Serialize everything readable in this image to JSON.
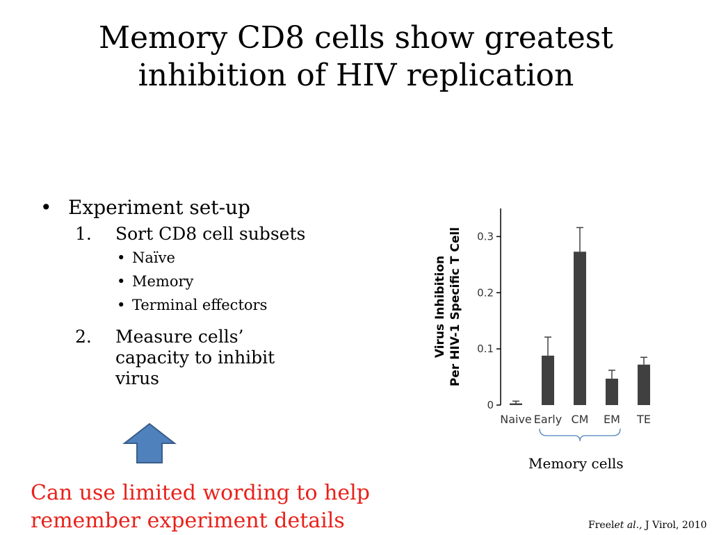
{
  "slide": {
    "title_lines": [
      "Memory CD8 cells show greatest",
      "inhibition of HIV replication"
    ],
    "bullet_main": "Experiment set-up",
    "bullet_main_marker": "•",
    "step1": {
      "number": "1.",
      "text": "Sort CD8 cell subsets"
    },
    "subsets": [
      {
        "marker": "•",
        "text": "Naïve"
      },
      {
        "marker": "•",
        "text": "Memory"
      },
      {
        "marker": "•",
        "text": "Terminal effectors"
      }
    ],
    "step2": {
      "number": "2.",
      "lines": [
        "Measure cells’",
        "capacity to inhibit",
        "virus"
      ]
    },
    "note_lines": [
      "Can use limited wording to help",
      "remember experiment details"
    ],
    "brace_label": "Memory cells",
    "citation": {
      "prefix": "Freel",
      "italic": "et al.,",
      "suffix": " J Virol, 2010"
    },
    "colors": {
      "note": "#e8211a",
      "arrow_fill": "#4f81bd",
      "arrow_stroke": "#385d8a",
      "bar": "#404040",
      "brace": "#4f81bd"
    }
  },
  "chart_data": {
    "type": "bar",
    "categories": [
      "Naive",
      "Early",
      "CM",
      "EM",
      "TE"
    ],
    "values": [
      0.003,
      0.088,
      0.273,
      0.047,
      0.072
    ],
    "errors": [
      0.004,
      0.033,
      0.043,
      0.015,
      0.013
    ],
    "ylabel_lines": [
      "Virus Inhibition",
      "Per HIV-1 Specific T Cell"
    ],
    "ylim": [
      0,
      0.35
    ],
    "yticks": [
      0,
      0.1,
      0.2,
      0.3
    ],
    "ytick_labels": [
      "0",
      "0.1",
      "0.2",
      "0.3"
    ],
    "grid": false,
    "bracket": {
      "from": "Early",
      "to": "EM",
      "label": "Memory cells"
    }
  }
}
